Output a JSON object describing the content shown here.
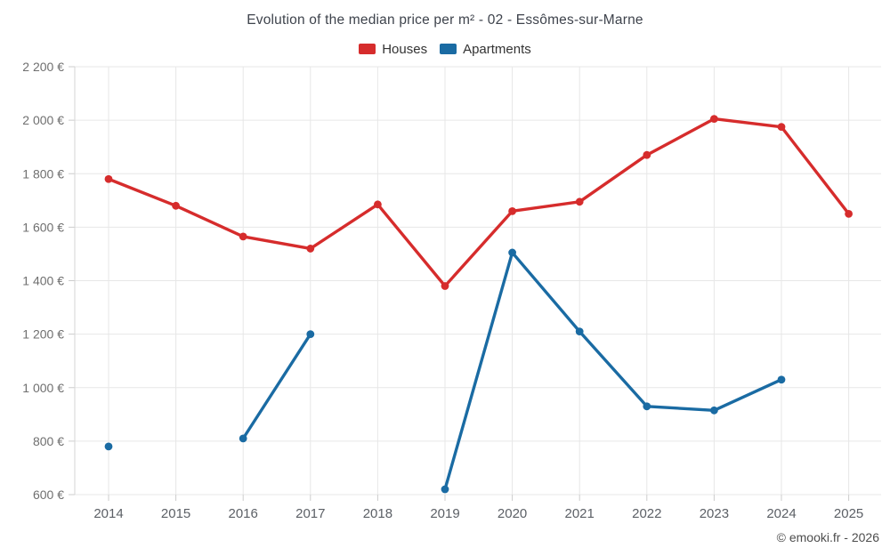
{
  "chart_data": {
    "type": "line",
    "title": "Evolution of the median price per m² - 02 - Essômes-sur-Marne",
    "categories": [
      "2014",
      "2015",
      "2016",
      "2017",
      "2018",
      "2019",
      "2020",
      "2021",
      "2022",
      "2023",
      "2024",
      "2025"
    ],
    "series": [
      {
        "name": "Houses",
        "color": "#d62c2c",
        "values": [
          1780,
          1680,
          1565,
          1520,
          1685,
          1380,
          1660,
          1695,
          1870,
          2005,
          1975,
          1650
        ]
      },
      {
        "name": "Apartments",
        "color": "#1a6ba3",
        "values": [
          780,
          null,
          810,
          1200,
          null,
          620,
          1505,
          1210,
          930,
          915,
          1030,
          null
        ]
      }
    ],
    "ylim": [
      600,
      2200
    ],
    "y_tick_step": 200,
    "y_tick_labels": [
      "600 €",
      "800 €",
      "1 000 €",
      "1 200 €",
      "1 400 €",
      "1 600 €",
      "1 800 €",
      "2 000 €",
      "2 200 €"
    ],
    "xlabel": "",
    "ylabel": "",
    "grid": true,
    "legend_position": "top",
    "colors": {
      "grid_line": "#e7e7e7",
      "axis_line": "#d6d6d6",
      "tick_mark": "#cccccc",
      "y_tick_label": "#6f6f6f",
      "x_tick_label": "#5c6066",
      "title_text": "#3e434c",
      "legend_text": "#333333",
      "background": "#ffffff"
    }
  },
  "footer": {
    "credit": "© emooki.fr - 2026"
  }
}
